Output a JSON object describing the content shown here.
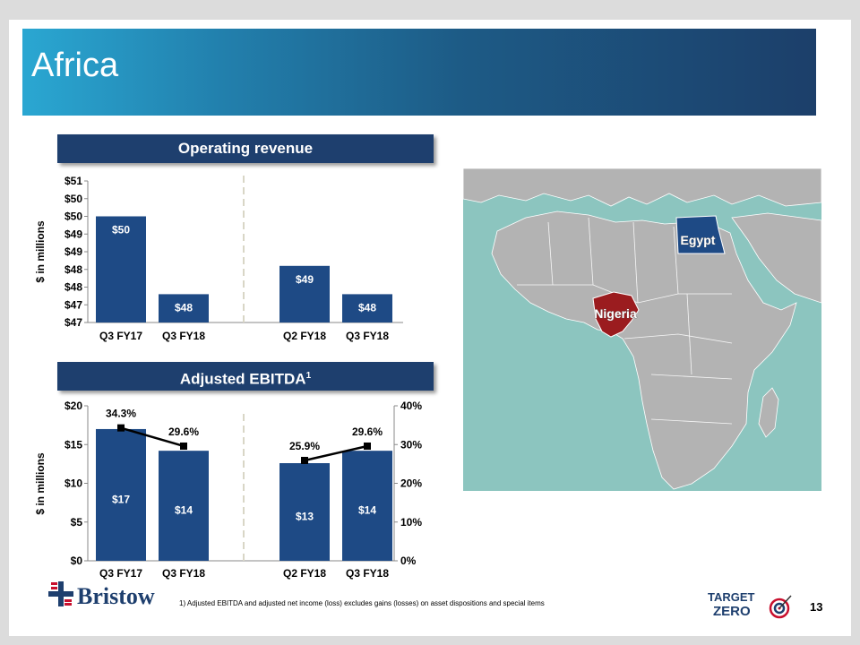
{
  "title": "Africa",
  "operating_revenue": {
    "header": "Operating revenue"
  },
  "ebitda": {
    "header": "Adjusted EBITDA",
    "header_sup": "1"
  },
  "map": {
    "labels": {
      "egypt": "Egypt",
      "nigeria": "Nigeria"
    }
  },
  "footer": {
    "logo_text": "Bristow",
    "footnote": "1) Adjusted EBITDA and adjusted net income (loss) excludes gains (losses) on asset dispositions and special items",
    "target_zero_top": "TARGET",
    "target_zero_bottom": "ZERO",
    "page_number": "13"
  },
  "colors": {
    "bar": "#1e4a85",
    "header": "#1e3f6e",
    "egypt": "#1e4a85",
    "nigeria": "#9b1c1f",
    "sea": "#8cc5bf",
    "land": "#b3b3b3"
  },
  "chart_data": [
    {
      "type": "bar",
      "title": "Operating revenue",
      "ylabel": "$ in millions",
      "categories": [
        "Q3 FY17",
        "Q3 FY18",
        "Q2 FY18",
        "Q3 FY18"
      ],
      "values": [
        50,
        47.8,
        48.6,
        47.8
      ],
      "value_labels": [
        "$50",
        "$48",
        "$49",
        "$48"
      ],
      "ylim": [
        47,
        51
      ],
      "yticks": [
        47,
        47.5,
        48,
        48.5,
        49,
        49.5,
        50,
        50.5,
        51
      ],
      "ytick_labels": [
        "$47",
        "$47",
        "$48",
        "$48",
        "$49",
        "$49",
        "$50",
        "$50",
        "$51"
      ],
      "gridlines": false
    },
    {
      "type": "bar+line",
      "title": "Adjusted EBITDA",
      "ylabel": "$ in millions",
      "categories": [
        "Q3 FY17",
        "Q3 FY18",
        "Q2 FY18",
        "Q3 FY18"
      ],
      "series": [
        {
          "name": "Adjusted EBITDA",
          "type": "bar",
          "values": [
            17,
            14.2,
            12.6,
            14.2
          ],
          "labels": [
            "$17",
            "$14",
            "$13",
            "$14"
          ]
        },
        {
          "name": "Adjusted EBITDA margin",
          "type": "line",
          "axis": "right",
          "values": [
            34.3,
            29.6,
            25.9,
            29.6
          ],
          "labels": [
            "34.3%",
            "29.6%",
            "25.9%",
            "29.6%"
          ]
        }
      ],
      "ylim": [
        0,
        20
      ],
      "yticks": [
        0,
        5,
        10,
        15,
        20
      ],
      "ytick_labels": [
        "$0",
        "$5",
        "$10",
        "$15",
        "$20"
      ],
      "y2lim": [
        0,
        40
      ],
      "y2ticks": [
        0,
        10,
        20,
        30,
        40
      ],
      "y2tick_labels": [
        "0%",
        "10%",
        "20%",
        "30%",
        "40%"
      ]
    }
  ]
}
